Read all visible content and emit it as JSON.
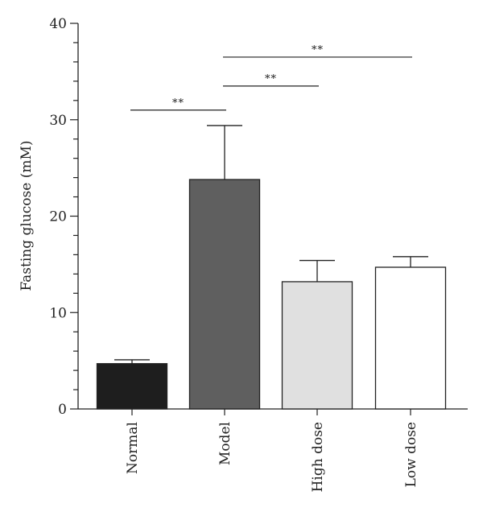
{
  "chart_data": {
    "type": "bar",
    "title": "",
    "xlabel": "",
    "ylabel": "Fasting glucose (mM)",
    "ylim": [
      0,
      40
    ],
    "yticks_major": [
      0,
      10,
      20,
      30,
      40
    ],
    "yticks_minor_step": 2,
    "grid": false,
    "legend": "none",
    "categories": [
      "Normal",
      "Model",
      "High dose",
      "Low dose"
    ],
    "values": [
      4.7,
      23.8,
      13.2,
      14.7
    ],
    "errors": [
      0.4,
      5.6,
      2.2,
      1.1
    ],
    "bar_colors": [
      "#1e1e1e",
      "#5f5f5f",
      "#e0e0e0",
      "#ffffff"
    ],
    "significance": [
      {
        "from": "Normal",
        "to": "Model",
        "label": "**",
        "y": 31
      },
      {
        "from": "Model",
        "to": "High dose",
        "label": "**",
        "y": 33.5
      },
      {
        "from": "Model",
        "to": "Low dose",
        "label": "**",
        "y": 36.5
      }
    ]
  }
}
